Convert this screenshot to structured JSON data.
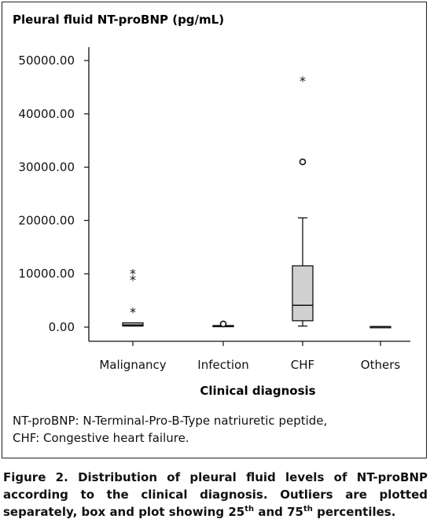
{
  "chart_data": {
    "type": "box",
    "ylabel": "Pleural fluid NT-proBNP (pg/mL)",
    "xlabel": "Clinical diagnosis",
    "ylim": [
      0,
      50000
    ],
    "y_ticks": [
      "50000.00",
      "40000.00",
      "30000.00",
      "20000.00",
      "10000.00",
      "0.00"
    ],
    "y_tick_values": [
      50000,
      40000,
      30000,
      20000,
      10000,
      0
    ],
    "categories": [
      "Malignancy",
      "Infection",
      "CHF",
      "Others"
    ],
    "boxes": [
      {
        "category": "Malignancy",
        "min": 100,
        "q1": 200,
        "median": 400,
        "q3": 800,
        "max": 800,
        "outliers": [
          {
            "value": 3200,
            "marker": "*"
          },
          {
            "value": 9200,
            "marker": "*"
          },
          {
            "value": 10400,
            "marker": "*"
          }
        ]
      },
      {
        "category": "Infection",
        "min": 0,
        "q1": 100,
        "median": 200,
        "q3": 300,
        "max": 300,
        "outliers": [
          {
            "value": 600,
            "marker": "o"
          }
        ]
      },
      {
        "category": "CHF",
        "min": 200,
        "q1": 1200,
        "median": 4100,
        "q3": 11500,
        "max": 20500,
        "outliers": [
          {
            "value": 31000,
            "marker": "o"
          },
          {
            "value": 46500,
            "marker": "*"
          }
        ]
      },
      {
        "category": "Others",
        "min": 100,
        "q1": 100,
        "median": 100,
        "q3": 100,
        "max": 100,
        "outliers": []
      }
    ],
    "box_fill": "#d0d0d0",
    "line_color": "#111111"
  },
  "footnote": {
    "line1": "NT-proBNP: N-Terminal-Pro-B-Type natriuretic peptide,",
    "line2": "CHF: Congestive heart failure."
  },
  "caption": {
    "part1": "Figure 2. Distribution of pleural fluid levels of NT-proBNP according to the clinical diagnosis. Outliers are plotted separately, box and plot showing 25",
    "sup1": "th",
    "part2": " and 75",
    "sup2": "th",
    "part3": " percentiles."
  }
}
